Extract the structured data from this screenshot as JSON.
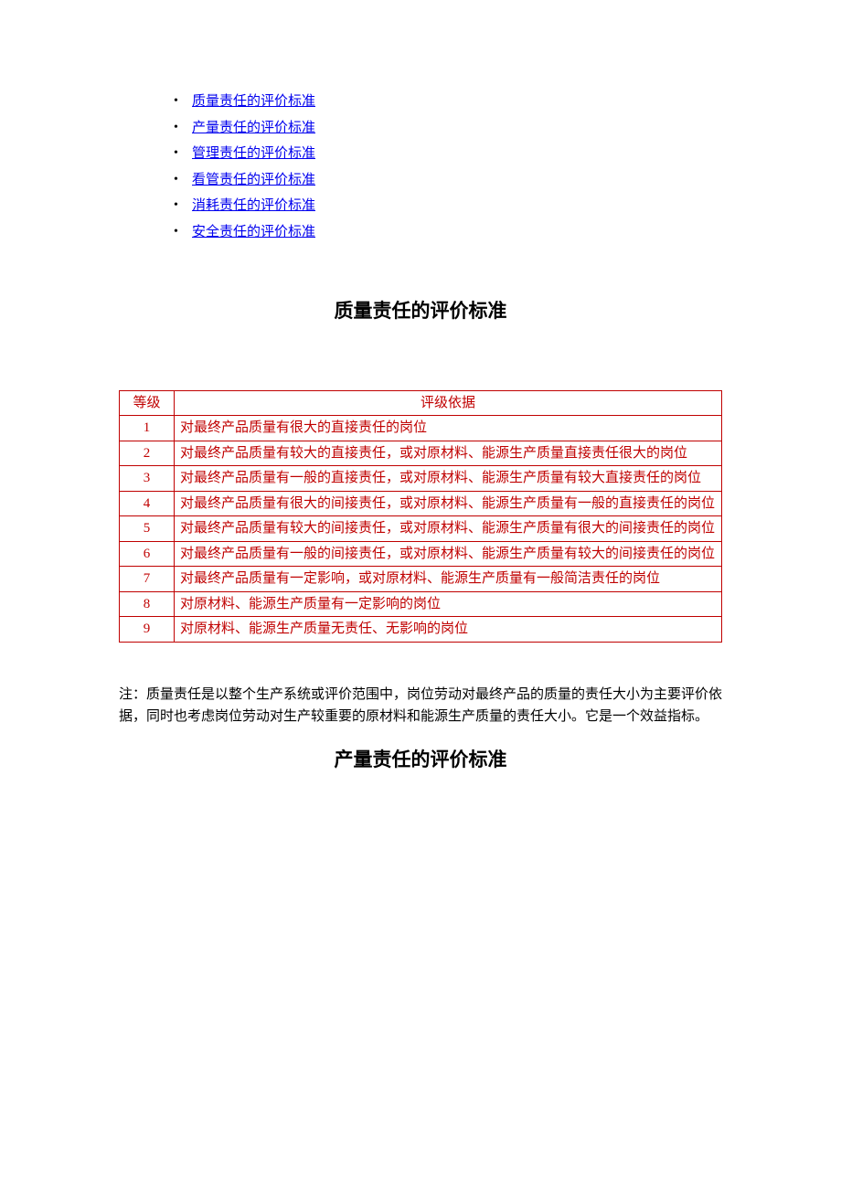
{
  "colors": {
    "link": "#0000ee",
    "table_border": "#c00000",
    "table_text": "#c00000",
    "body_text": "#000000",
    "background": "#ffffff"
  },
  "toc": {
    "items": [
      {
        "label": "质量责任的评价标准"
      },
      {
        "label": "产量责任的评价标准"
      },
      {
        "label": "管理责任的评价标准"
      },
      {
        "label": "看管责任的评价标准"
      },
      {
        "label": "消耗责任的评价标准"
      },
      {
        "label": "安全责任的评价标准"
      }
    ]
  },
  "section1": {
    "title": "质量责任的评价标准",
    "table": {
      "headers": {
        "level": "等级",
        "basis": "评级依据"
      },
      "rows": [
        {
          "level": "1",
          "desc": "对最终产品质量有很大的直接责任的岗位"
        },
        {
          "level": "2",
          "desc": "对最终产品质量有较大的直接责任，或对原材料、能源生产质量直接责任很大的岗位"
        },
        {
          "level": "3",
          "desc": "对最终产品质量有一般的直接责任，或对原材料、能源生产质量有较大直接责任的岗位"
        },
        {
          "level": "4",
          "desc": "对最终产品质量有很大的间接责任，或对原材料、能源生产质量有一般的直接责任的岗位"
        },
        {
          "level": "5",
          "desc": "对最终产品质量有较大的间接责任，或对原材料、能源生产质量有很大的间接责任的岗位"
        },
        {
          "level": "6",
          "desc": "对最终产品质量有一般的间接责任，或对原材料、能源生产质量有较大的间接责任的岗位"
        },
        {
          "level": "7",
          "desc": "对最终产品质量有一定影响，或对原材料、能源生产质量有一般简洁责任的岗位"
        },
        {
          "level": "8",
          "desc": "对原材料、能源生产质量有一定影响的岗位"
        },
        {
          "level": "9",
          "desc": "对原材料、能源生产质量无责任、无影响的岗位"
        }
      ]
    },
    "note": "注：质量责任是以整个生产系统或评价范围中，岗位劳动对最终产品的质量的责任大小为主要评价依据，同时也考虑岗位劳动对生产较重要的原材料和能源生产质量的责任大小。它是一个效益指标。"
  },
  "section2": {
    "title": "产量责任的评价标准"
  }
}
